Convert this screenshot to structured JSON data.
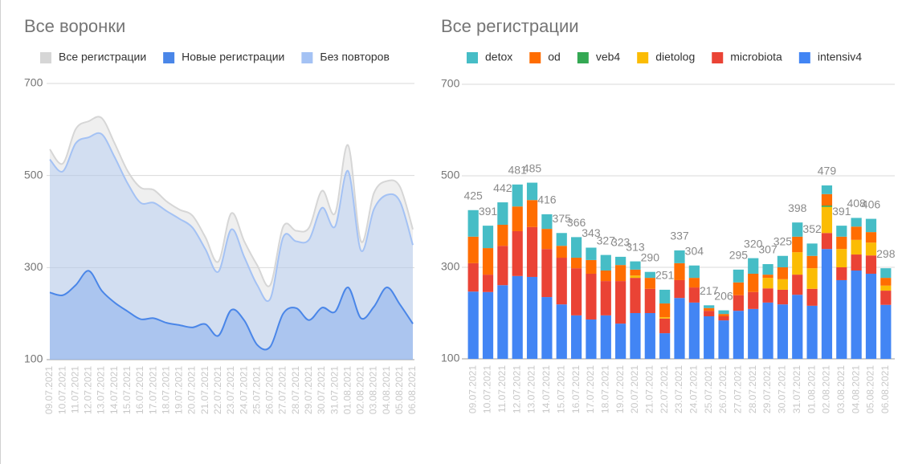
{
  "chart_data": [
    {
      "type": "area",
      "title": "Все воронки",
      "categories": [
        "09.07.2021",
        "10.07.2021",
        "11.07.2021",
        "12.07.2021",
        "13.07.2021",
        "14.07.2021",
        "15.07.2021",
        "16.07.2021",
        "17.07.2021",
        "18.07.2021",
        "19.07.2021",
        "20.07.2021",
        "21.07.2021",
        "22.07.2021",
        "23.07.2021",
        "24.07.2021",
        "25.07.2021",
        "26.07.2021",
        "27.07.2021",
        "28.07.2021",
        "29.07.2021",
        "30.07.2021",
        "31.07.2021",
        "01.08.2021",
        "02.08.2021",
        "03.08.2021",
        "04.08.2021",
        "05.08.2021",
        "06.08.2021"
      ],
      "series": [
        {
          "name": "Все регистрации",
          "color": "#d6d6d6",
          "values": [
            557,
            526,
            601,
            618,
            625,
            570,
            510,
            474,
            469,
            444,
            426,
            413,
            366,
            313,
            418,
            357,
            305,
            262,
            389,
            380,
            387,
            467,
            418,
            566,
            357,
            462,
            488,
            476,
            383
          ]
        },
        {
          "name": "Новые регистрации",
          "color": "#4a86e8",
          "values": [
            246,
            240,
            262,
            293,
            250,
            224,
            205,
            188,
            190,
            180,
            175,
            170,
            177,
            152,
            208,
            185,
            132,
            128,
            200,
            212,
            186,
            213,
            204,
            257,
            190,
            215,
            257,
            220,
            178
          ]
        },
        {
          "name": "Без повторов",
          "color": "#a4c2f4",
          "values": [
            535,
            509,
            570,
            583,
            590,
            540,
            483,
            441,
            441,
            423,
            406,
            387,
            340,
            291,
            383,
            323,
            262,
            232,
            366,
            357,
            361,
            430,
            389,
            510,
            337,
            427,
            458,
            444,
            349
          ]
        }
      ],
      "ylim": [
        100,
        700
      ],
      "yticks": [
        100,
        300,
        500,
        700
      ],
      "grid": true
    },
    {
      "type": "stacked-bar",
      "title": "Все регистрации",
      "categories": [
        "09.07.2021",
        "10.07.2021",
        "11.07.2021",
        "12.07.2021",
        "13.07.2021",
        "14.07.2021",
        "15.07.2021",
        "16.07.2021",
        "17.07.2021",
        "18.07.2021",
        "19.07.2021",
        "20.07.2021",
        "21.07.2021",
        "22.07.2021",
        "23.07.2021",
        "24.07.2021",
        "25.07.2021",
        "26.07.2021",
        "27.07.2021",
        "28.07.2021",
        "29.07.2021",
        "30.07.2021",
        "31.07.2021",
        "01.08.2021",
        "02.08.2021",
        "03.08.2021",
        "04.08.2021",
        "05.08.2021",
        "06.08.2021"
      ],
      "series": [
        {
          "name": "detox",
          "color": "#46bdc6",
          "values": [
            58,
            49,
            49,
            48,
            38,
            32,
            28,
            45,
            27,
            34,
            18,
            18,
            13,
            30,
            28,
            27,
            6,
            8,
            28,
            34,
            23,
            25,
            31,
            27,
            19,
            24,
            19,
            29,
            21
          ]
        },
        {
          "name": "od",
          "color": "#ff6d01",
          "values": [
            58,
            58,
            46,
            54,
            59,
            44,
            26,
            23,
            30,
            23,
            35,
            13,
            24,
            30,
            37,
            21,
            6,
            5,
            28,
            40,
            7,
            26,
            34,
            27,
            25,
            27,
            29,
            23,
            17
          ]
        },
        {
          "name": "veb4",
          "color": "#34a853",
          "values": [
            0,
            0,
            0,
            0,
            0,
            0,
            0,
            0,
            0,
            0,
            0,
            0,
            0,
            0,
            0,
            0,
            0,
            0,
            0,
            0,
            0,
            0,
            0,
            0,
            3,
            0,
            0,
            0,
            0
          ]
        },
        {
          "name": "dietolog",
          "color": "#fbbc04",
          "values": [
            0,
            0,
            0,
            0,
            0,
            0,
            0,
            0,
            0,
            0,
            0,
            5,
            0,
            3,
            0,
            0,
            0,
            0,
            0,
            0,
            23,
            23,
            49,
            45,
            57,
            40,
            32,
            28,
            11
          ]
        },
        {
          "name": "microbiota",
          "color": "#ea4335",
          "values": [
            62,
            38,
            86,
            98,
            109,
            105,
            102,
            103,
            100,
            75,
            93,
            77,
            53,
            32,
            39,
            33,
            12,
            9,
            34,
            37,
            31,
            32,
            44,
            37,
            35,
            28,
            35,
            40,
            31
          ]
        },
        {
          "name": "intensiv4",
          "color": "#4285f4",
          "values": [
            247,
            246,
            261,
            281,
            279,
            235,
            219,
            195,
            186,
            195,
            177,
            200,
            200,
            156,
            233,
            223,
            193,
            184,
            205,
            209,
            223,
            219,
            240,
            216,
            340,
            272,
            293,
            286,
            218
          ]
        }
      ],
      "totals": [
        425,
        391,
        442,
        481,
        485,
        416,
        375,
        366,
        343,
        327,
        323,
        313,
        290,
        251,
        337,
        304,
        217,
        206,
        295,
        320,
        307,
        325,
        398,
        352,
        479,
        391,
        408,
        406,
        298
      ],
      "ylim": [
        100,
        700
      ],
      "yticks": [
        100,
        300,
        500,
        700
      ],
      "grid": true
    }
  ]
}
